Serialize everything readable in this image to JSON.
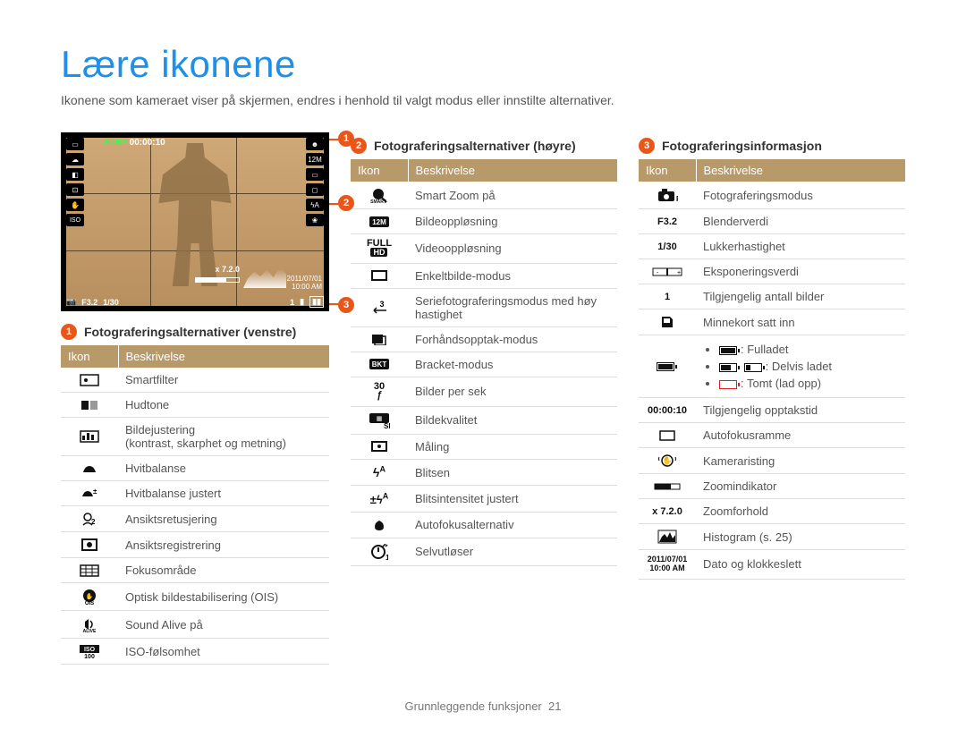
{
  "title": "Lære ikonene",
  "subtitle": "Ikonene som kameraet viser på skjermen, endres i henhold til valgt modus eller innstilte alternativer.",
  "screenshot": {
    "stby": "STBY",
    "stby_time": "00:00:10",
    "bottom_f": "F3.2",
    "bottom_shutter": "1/30",
    "xzoom": "x 7.2.0",
    "date": "2011/07/01",
    "time": "10:00 AM"
  },
  "callouts": {
    "c1": "1",
    "c2": "2",
    "c3": "3"
  },
  "table_header": {
    "icon": "Ikon",
    "desc": "Beskrivelse"
  },
  "sections": {
    "left": {
      "num": "1",
      "title": "Fotograferingsalternativer (venstre)",
      "rows": [
        {
          "icon": "smartfilter",
          "desc": "Smartfilter"
        },
        {
          "icon": "skintone",
          "desc": "Hudtone"
        },
        {
          "icon": "adjust",
          "desc": "Bildejustering\n(kontrast, skarphet og metning)"
        },
        {
          "icon": "wb",
          "desc": "Hvitbalanse"
        },
        {
          "icon": "wbadj",
          "desc": "Hvitbalanse justert"
        },
        {
          "icon": "faceretouch",
          "desc": "Ansiktsretusjering"
        },
        {
          "icon": "facedetect",
          "desc": "Ansiktsregistrering"
        },
        {
          "icon": "focusarea",
          "desc": "Fokusområde"
        },
        {
          "icon": "ois",
          "desc": "Optisk bildestabilisering (OIS)"
        },
        {
          "icon": "soundalive",
          "desc": "Sound Alive på"
        },
        {
          "icon": "iso",
          "desc": "ISO-følsomhet"
        }
      ]
    },
    "mid": {
      "num": "2",
      "title": "Fotograferingsalternativer (høyre)",
      "rows": [
        {
          "icon": "smartzoom",
          "desc": "Smart Zoom på"
        },
        {
          "icon": "res12m",
          "desc": "Bildeoppløsning"
        },
        {
          "icon": "fullhd",
          "desc": "Videooppløsning"
        },
        {
          "icon": "single",
          "desc": "Enkeltbilde-modus"
        },
        {
          "icon": "burst3",
          "desc": "Seriefotograferingsmodus med høy hastighet"
        },
        {
          "icon": "precap",
          "desc": "Forhåndsopptak-modus"
        },
        {
          "icon": "bracket",
          "desc": "Bracket-modus"
        },
        {
          "icon": "fps30",
          "desc": "Bilder per sek"
        },
        {
          "icon": "quality",
          "desc": "Bildekvalitet"
        },
        {
          "icon": "metering",
          "desc": "Måling"
        },
        {
          "icon": "flash",
          "desc": "Blitsen"
        },
        {
          "icon": "flashadj",
          "desc": "Blitsintensitet justert"
        },
        {
          "icon": "macro",
          "desc": "Autofokusalternativ"
        },
        {
          "icon": "timer",
          "desc": "Selvutløser"
        }
      ]
    },
    "right": {
      "num": "3",
      "title": "Fotograferingsinformasjon",
      "rows": [
        {
          "icon": "mode",
          "desc": "Fotograferingsmodus"
        },
        {
          "icon": "fval",
          "text": "F3.2",
          "desc": "Blenderverdi"
        },
        {
          "icon": "shutter",
          "text": "1/30",
          "desc": "Lukkerhastighet"
        },
        {
          "icon": "ev",
          "desc": "Eksponeringsverdi"
        },
        {
          "icon": "remain",
          "text": "1",
          "desc": "Tilgjengelig antall bilder"
        },
        {
          "icon": "card",
          "desc": "Minnekort satt inn"
        },
        {
          "icon": "battery",
          "desc": "__battery__"
        },
        {
          "icon": "rectime",
          "text": "00:00:10",
          "desc": "Tilgjengelig opptakstid"
        },
        {
          "icon": "afframe",
          "desc": "Autofokusramme"
        },
        {
          "icon": "shake",
          "desc": "Kameraristing"
        },
        {
          "icon": "zoombar",
          "desc": "Zoomindikator"
        },
        {
          "icon": "zoomx",
          "text": "x 7.2.0",
          "desc": "Zoomforhold"
        },
        {
          "icon": "histo",
          "desc": "Histogram (s. 25)"
        },
        {
          "icon": "datetime",
          "desc": "Dato og klokkeslett"
        }
      ]
    }
  },
  "battery": {
    "full": ": Fulladet",
    "partial": ": Delvis ladet",
    "empty": ": Tomt (lad opp)"
  },
  "datetime_icon": {
    "date": "2011/07/01",
    "time": "10:00 AM"
  },
  "footer": {
    "label": "Grunnleggende funksjoner",
    "page": "21"
  }
}
